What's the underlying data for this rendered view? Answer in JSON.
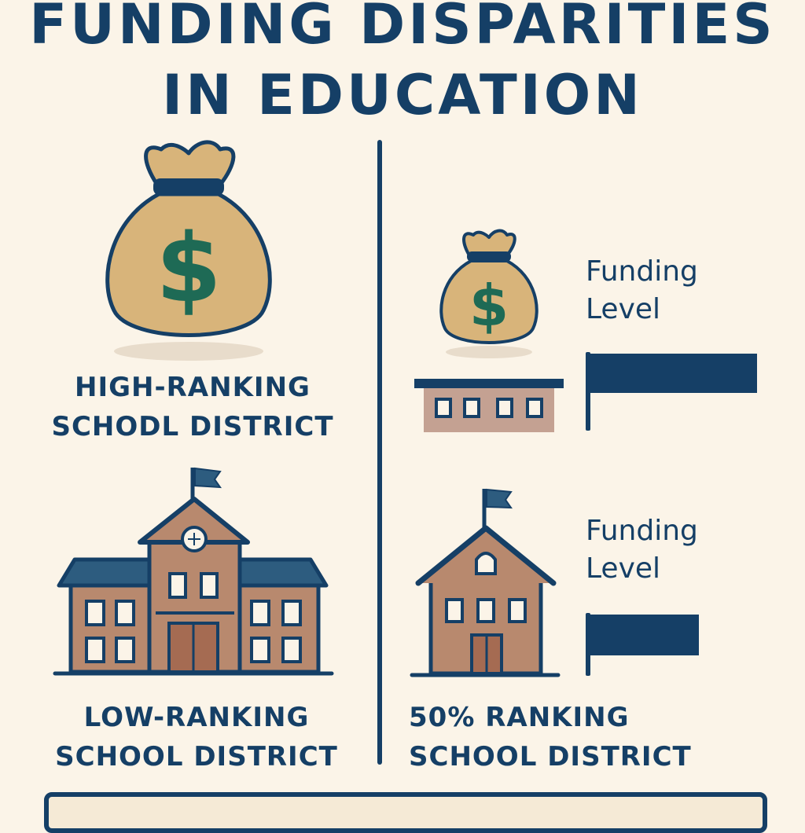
{
  "title": {
    "line1": "FUNDING DISPARITIES",
    "line2": "IN EDUCATION"
  },
  "left": {
    "top_caption": [
      "HIGH-RANKING",
      "SCHODL DISTRICT"
    ],
    "bottom_caption": [
      "LOW-RANKING",
      "SCHOOL DISTRICT"
    ],
    "icons": [
      "money-bag-large-icon",
      "large-school-building-icon"
    ]
  },
  "right": {
    "top_block": {
      "label_line1": "Funding",
      "label_line2": "Level",
      "funding_level": 1.0,
      "icons": [
        "money-bag-small-icon",
        "flat-school-building-icon"
      ]
    },
    "bottom_block": {
      "label_line1": "Funding",
      "label_line2": "Level",
      "funding_level": 0.65,
      "icons": [
        "small-school-house-icon"
      ]
    },
    "bottom_caption": [
      "50% RANKING",
      "SCHOOL DISTRICT"
    ]
  },
  "colors": {
    "navy": "#153f66",
    "bag": "#d8b47a",
    "dollar": "#1e6a55",
    "brick": "#b8896e",
    "background": "#fbf4e8"
  }
}
